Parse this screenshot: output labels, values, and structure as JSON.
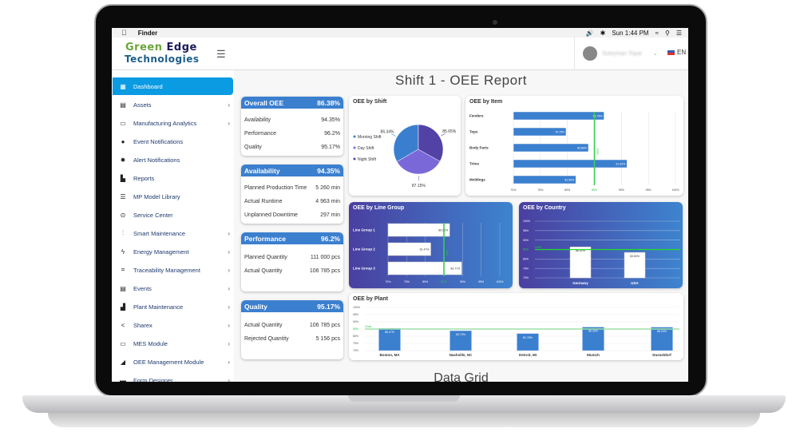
{
  "menubar": {
    "app": "Finder",
    "clock": "Sun 1:44 PM",
    "icons": [
      "apple-icon",
      "volume-icon",
      "bluetooth-icon",
      "wifi-icon",
      "search-icon",
      "list-icon"
    ]
  },
  "header": {
    "logo_line1a": "Green",
    "logo_line1b": "Edge",
    "logo_line2": "Technologies",
    "user_name": "Suleyman Topal",
    "language": "EN"
  },
  "sidebar": {
    "items": [
      {
        "label": "Dashboard",
        "icon": "dashboard-icon",
        "active": true,
        "arrow": false
      },
      {
        "label": "Assets",
        "icon": "assets-icon",
        "arrow": true
      },
      {
        "label": "Manufacturing Analytics",
        "icon": "monitor-icon",
        "arrow": true
      },
      {
        "label": "Event Notifications",
        "icon": "bell-icon",
        "arrow": false
      },
      {
        "label": "Alert Notifications",
        "icon": "alarm-icon",
        "arrow": false
      },
      {
        "label": "Reports",
        "icon": "report-icon",
        "arrow": false
      },
      {
        "label": "MP Model Library",
        "icon": "list-icon",
        "arrow": false
      },
      {
        "label": "Service Center",
        "icon": "target-icon",
        "arrow": false
      },
      {
        "label": "Smart Maintenance",
        "icon": "pulse-icon",
        "arrow": true
      },
      {
        "label": "Energy Management",
        "icon": "bolt-icon",
        "arrow": true
      },
      {
        "label": "Traceability Management",
        "icon": "qr-icon",
        "arrow": true
      },
      {
        "label": "Events",
        "icon": "calendar-icon",
        "arrow": true
      },
      {
        "label": "Plant Maintenance",
        "icon": "factory-icon",
        "arrow": true
      },
      {
        "label": "Sharex",
        "icon": "share-icon",
        "arrow": true
      },
      {
        "label": "MES Module",
        "icon": "devices-icon",
        "arrow": true
      },
      {
        "label": "OEE Management Module",
        "icon": "gauge-icon",
        "arrow": true
      },
      {
        "label": "Form Designer",
        "icon": "form-icon",
        "arrow": true
      }
    ]
  },
  "page": {
    "title": "Shift 1 - OEE Report",
    "next_section": "Data Grid"
  },
  "kpis": [
    {
      "title": "Overall OEE",
      "value": "86.38%",
      "rows": [
        [
          "Availability",
          "94.35%"
        ],
        [
          "Performance",
          "96.2%"
        ],
        [
          "Quality",
          "95.17%"
        ]
      ]
    },
    {
      "title": "Availability",
      "value": "94.35%",
      "rows": [
        [
          "Planned Production Time",
          "5 260 min"
        ],
        [
          "Actual Runtime",
          "4 963 min"
        ],
        [
          "Unplanned Downtime",
          "297 min"
        ]
      ]
    },
    {
      "title": "Performance",
      "value": "96.2%",
      "rows": [
        [
          "Planned Quantity",
          "111 000 pcs"
        ],
        [
          "Actual Quantity",
          "106 785 pcs"
        ]
      ]
    },
    {
      "title": "Quality",
      "value": "95.17%",
      "rows": [
        [
          "Actual Quantity",
          "106 785 pcs"
        ],
        [
          "Rejected Quantity",
          "5 156 pcs"
        ]
      ]
    }
  ],
  "colors": {
    "accent": "#3b7fcf",
    "active_nav": "#0a9be3",
    "goal": "#22cc44"
  },
  "chart_data": [
    {
      "id": "shift",
      "type": "pie",
      "title": "OEE by Shift",
      "legend": "left",
      "categories": [
        "Morning Shift",
        "Day Shift",
        "Night Shift"
      ],
      "values": [
        86.34,
        87.15,
        85.65
      ],
      "labels": [
        "86.34%",
        "87.15%",
        "85.65%"
      ],
      "colors": [
        "#3a7fcf",
        "#7b68d8",
        "#5242a6"
      ]
    },
    {
      "id": "item",
      "type": "bar",
      "orientation": "horizontal",
      "title": "OEE by Item",
      "categories": [
        "Fenders",
        "Tops",
        "Body Parts",
        "Trims",
        "Moldings"
      ],
      "values": [
        86.78,
        79.75,
        83.89,
        91.02,
        81.56
      ],
      "labels": [
        "86.78%",
        "79.75%",
        "83.89%",
        "91.02%",
        "81.56%"
      ],
      "xlim": [
        70,
        100
      ],
      "ticks": [
        "70%",
        "75%",
        "80%",
        "85%",
        "90%",
        "95%",
        "100%"
      ],
      "goal": 85,
      "goal_label": "Goal",
      "grid": true
    },
    {
      "id": "linegroup",
      "type": "bar",
      "orientation": "horizontal",
      "title": "OEE by Line Group",
      "categories": [
        "Line Group 1",
        "Line Group 2",
        "Line Group 3"
      ],
      "values": [
        86.53,
        81.47,
        89.77
      ],
      "labels": [
        "86.53%",
        "81.47%",
        "89.77%"
      ],
      "xlim": [
        70,
        100
      ],
      "ticks": [
        "70%",
        "75%",
        "80%",
        "85%",
        "90%",
        "95%",
        "100%"
      ],
      "goal": 85,
      "goal_label": "Goal",
      "grid": true
    },
    {
      "id": "country",
      "type": "bar",
      "orientation": "vertical",
      "title": "OEE by Country",
      "categories": [
        "Germany",
        "USA"
      ],
      "values": [
        86.42,
        83.5
      ],
      "labels": [
        "86.42%",
        "83.50%"
      ],
      "ylim": [
        70,
        100
      ],
      "ticks": [
        "70%",
        "75%",
        "80%",
        "85%",
        "90%",
        "95%",
        "100%"
      ],
      "goal": 85,
      "goal_label": "Goal",
      "grid": true
    },
    {
      "id": "plant",
      "type": "bar",
      "orientation": "vertical",
      "title": "OEE by Plant",
      "categories": [
        "Boston, MA",
        "Nashville, NC",
        "Detroit, MI",
        "Munich",
        "Dusseldorf"
      ],
      "values": [
        85.47,
        83.79,
        81.78,
        86.33,
        86.23
      ],
      "labels": [
        "85.47%",
        "83.79%",
        "81.78%",
        "86.33%",
        "86.23%"
      ],
      "ylim": [
        70,
        100
      ],
      "ticks": [
        "70%",
        "75%",
        "80%",
        "85%",
        "90%",
        "95%",
        "100%"
      ],
      "goal": 85,
      "goal_label": "Goal",
      "grid": true
    }
  ]
}
